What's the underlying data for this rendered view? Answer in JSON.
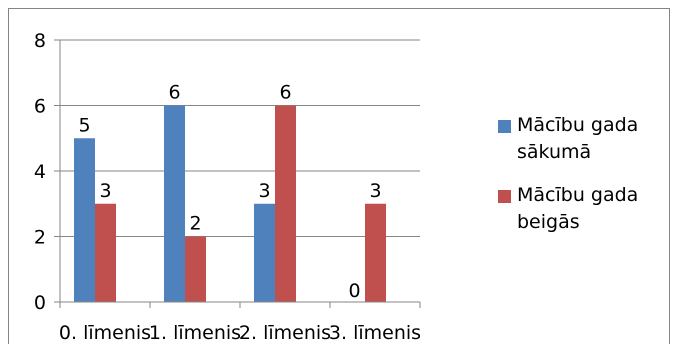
{
  "chart_data": {
    "type": "bar",
    "categories": [
      "0. līmenis",
      "1. līmenis",
      "2. līmenis",
      "3. līmenis"
    ],
    "series": [
      {
        "name": "Mācību gada sākumā",
        "values": [
          5,
          6,
          3,
          0
        ],
        "color": "#4F81BD"
      },
      {
        "name": "Mācību gada beigās",
        "values": [
          3,
          2,
          6,
          3
        ],
        "color": "#C0504D"
      }
    ],
    "ylim": [
      0,
      8
    ],
    "yticks": [
      0,
      2,
      4,
      6,
      8
    ],
    "grid": true,
    "legend_position": "right",
    "data_labels": true,
    "title": "",
    "xlabel": "",
    "ylabel": ""
  }
}
